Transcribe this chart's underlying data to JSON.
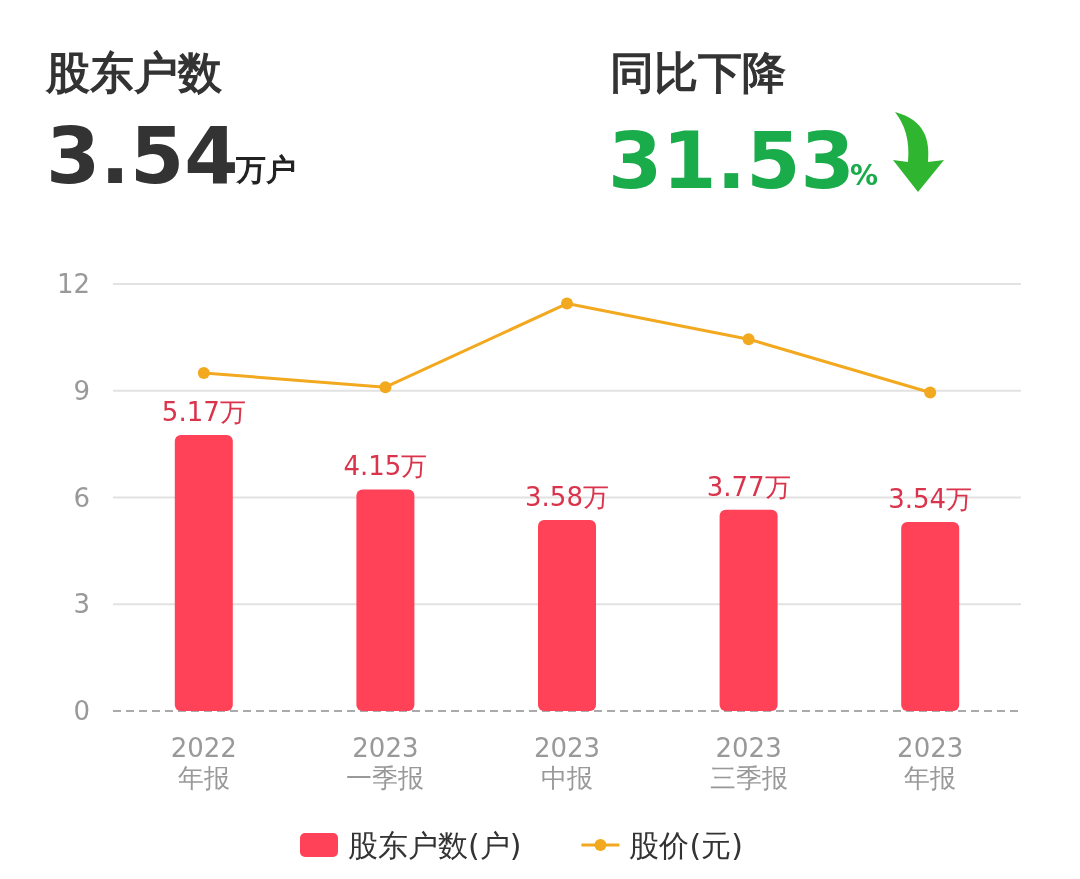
{
  "chart_data": {
    "type": "bar",
    "title": "股东户数",
    "annotations": [
      "3.54",
      "万户",
      "同比下降",
      "31.53",
      "%"
    ],
    "categories": [
      "2022\n年报",
      "2023\n一季报",
      "2023\n中报",
      "2023\n三季报",
      "2023\n年报"
    ],
    "series": [
      {
        "name": "股东户数(户)",
        "color": "#ff4257",
        "axis": "y2",
        "values": [
          5.17,
          4.15,
          3.58,
          3.77,
          3.54
        ],
        "value_labels": [
          "5.17万",
          "4.15万",
          "3.58万",
          "3.77万",
          "3.54万"
        ]
      },
      {
        "type": "line",
        "name": "股价(元)",
        "color": "#f2a91f",
        "marker": "circle",
        "values": [
          9.5,
          9.1,
          11.45,
          10.45,
          8.95
        ]
      }
    ],
    "ylim": [
      0,
      12
    ],
    "yticks": [
      0,
      3,
      6,
      9,
      12
    ],
    "y2lim": [
      0,
      8
    ],
    "grid": "y",
    "legend": "bottom"
  }
}
